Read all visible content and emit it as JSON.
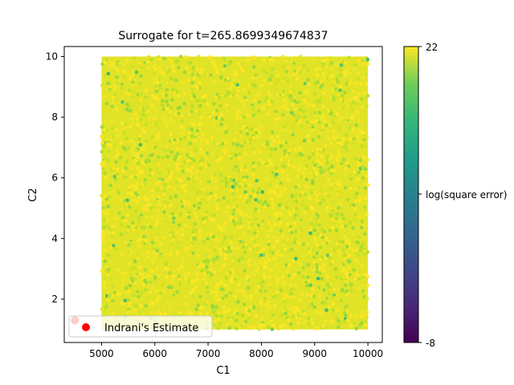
{
  "chart_data": {
    "type": "scatter",
    "title": "Surrogate for t=265.8699349674837",
    "xlabel": "C1",
    "ylabel": "C2",
    "xlim": [
      4300,
      10270
    ],
    "ylim": [
      0.57,
      10.33
    ],
    "x_ticks": [
      5000,
      6000,
      7000,
      8000,
      9000,
      10000
    ],
    "x_tick_labels": [
      "5000",
      "6000",
      "7000",
      "8000",
      "9000",
      "10000"
    ],
    "y_ticks": [
      2,
      4,
      6,
      8,
      10
    ],
    "y_tick_labels": [
      "2",
      "4",
      "6",
      "8",
      "10"
    ],
    "grid": false,
    "scatter_field": {
      "x_range": [
        5000,
        10000
      ],
      "y_range": [
        1,
        10
      ],
      "colormap": "viridis",
      "value_label": "log(square error)",
      "dominant_value_range": [
        17,
        22
      ]
    },
    "series": [
      {
        "name": "Indrani's Estimate",
        "color": "#ff0000",
        "points": [
          {
            "x": 4500,
            "y": 1.3
          }
        ]
      }
    ],
    "legend": {
      "placement": "lower-left",
      "entries": [
        "Indrani's Estimate"
      ]
    },
    "colorbar": {
      "label": "log(square error)",
      "min": -8,
      "max": 22,
      "tick_labels": [
        "22",
        "log(square error)",
        "-8"
      ],
      "colormap": "viridis"
    }
  }
}
